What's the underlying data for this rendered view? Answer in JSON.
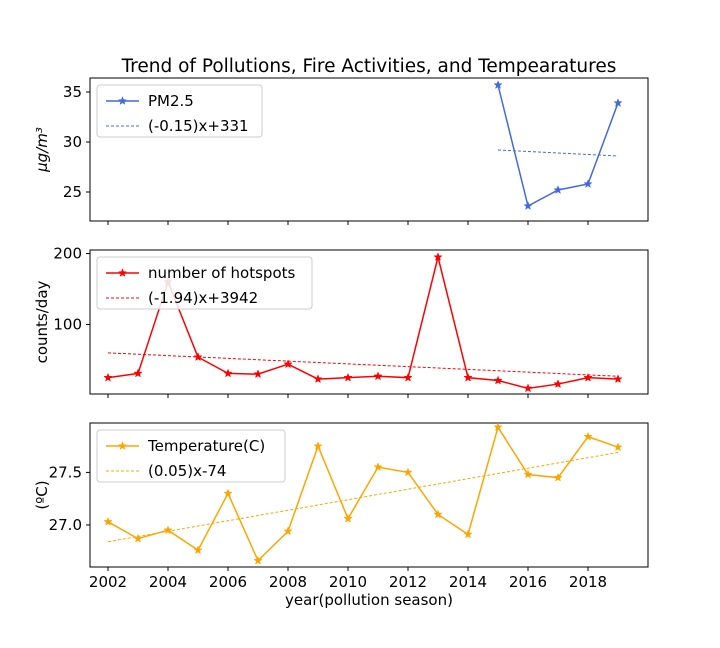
{
  "chart_data": {
    "type": "line",
    "title": "Trend of Pollutions, Fire Activities, and Tempearatures",
    "xlabel": "year(pollution season)",
    "xlim": [
      2001.4,
      2020.0
    ],
    "xticks": [
      2002,
      2004,
      2006,
      2008,
      2010,
      2012,
      2014,
      2016,
      2018
    ],
    "xtick_labels": [
      "2002",
      "2004",
      "2006",
      "2008",
      "2010",
      "2012",
      "2014",
      "2016",
      "2018"
    ],
    "grid": false,
    "legend_position": "top-left",
    "panels": [
      {
        "name": "pm25",
        "ylabel": "μg/m³",
        "ylim": [
          22.1,
          36.4
        ],
        "yticks": [
          25,
          30,
          35
        ],
        "ytick_labels": [
          "25",
          "30",
          "35"
        ],
        "color": "#4169e1",
        "series": [
          {
            "name": "PM2.5",
            "kind": "data",
            "x": [
              2015,
              2016,
              2017,
              2018,
              2019
            ],
            "y": [
              35.7,
              23.6,
              25.2,
              25.8,
              33.9
            ]
          },
          {
            "name": "(-0.15)x+331",
            "kind": "trend",
            "x": [
              2015,
              2019
            ],
            "y": [
              29.2,
              28.6
            ]
          }
        ]
      },
      {
        "name": "hotspots",
        "ylabel": "counts/day",
        "ylim": [
          2,
          205
        ],
        "yticks": [
          100,
          200
        ],
        "ytick_labels": [
          "100",
          "200"
        ],
        "color": "#ff0000",
        "series": [
          {
            "name": "number of hotspots",
            "kind": "data",
            "x": [
              2002,
              2003,
              2004,
              2005,
              2006,
              2007,
              2008,
              2009,
              2010,
              2011,
              2012,
              2013,
              2014,
              2015,
              2016,
              2017,
              2018,
              2019
            ],
            "y": [
              25,
              31,
              160,
              54,
              31,
              30,
              44,
              23,
              25,
              27,
              25,
              195,
              25,
              21,
              10,
              16,
              25,
              23
            ]
          },
          {
            "name": "(-1.94)x+3942",
            "kind": "trend",
            "x": [
              2002,
              2019
            ],
            "y": [
              60,
              27
            ]
          }
        ]
      },
      {
        "name": "temperature",
        "ylabel": "(ºC)",
        "ylim": [
          26.6,
          27.97
        ],
        "yticks": [
          27.0,
          27.5
        ],
        "ytick_labels": [
          "27.0",
          "27.5"
        ],
        "color": "#ffa500",
        "series": [
          {
            "name": "Temperature(C)",
            "kind": "data",
            "x": [
              2002,
              2003,
              2004,
              2005,
              2006,
              2007,
              2008,
              2009,
              2010,
              2011,
              2012,
              2013,
              2014,
              2015,
              2016,
              2017,
              2018,
              2019
            ],
            "y": [
              27.03,
              26.87,
              26.95,
              26.76,
              27.3,
              26.66,
              26.94,
              27.75,
              27.06,
              27.55,
              27.5,
              27.1,
              26.91,
              27.93,
              27.48,
              27.45,
              27.84,
              27.74
            ]
          },
          {
            "name": "(0.05)x-74",
            "kind": "trend",
            "x": [
              2002,
              2019
            ],
            "y": [
              26.84,
              27.69
            ]
          }
        ]
      }
    ]
  }
}
